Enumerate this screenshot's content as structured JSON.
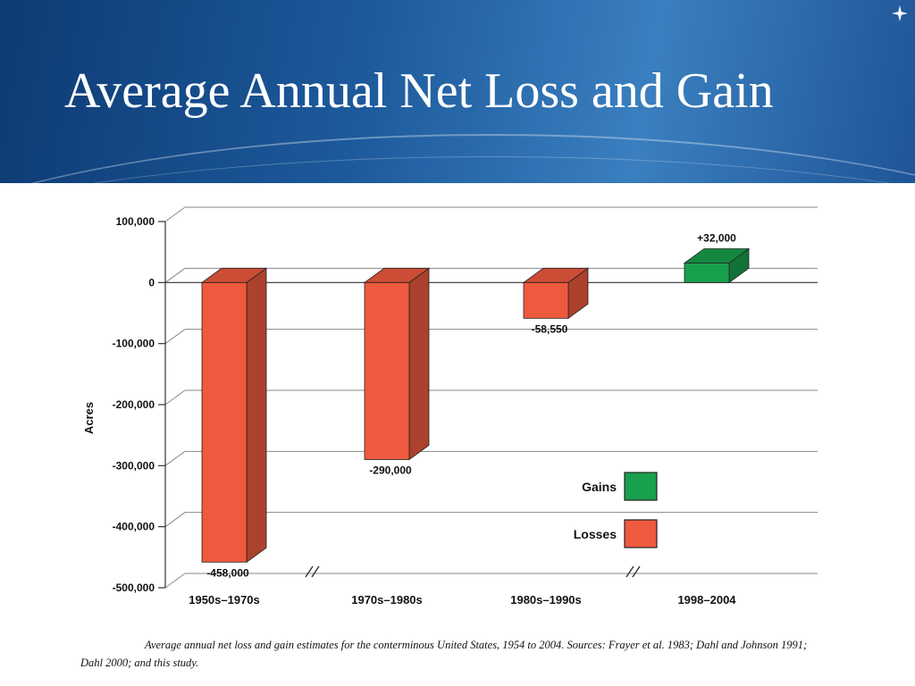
{
  "slide": {
    "title": "Average Annual Net Loss and Gain",
    "caption": "Average annual net loss and gain estimates for the conterminous United States, 1954 to 2004. Sources: Frayer et al. 1983; Dahl and Johnson 1991; Dahl 2000; and this study."
  },
  "colors": {
    "banner_dark": "#0d3a73",
    "banner_light": "#3a7fbf",
    "gains": "#18a04c",
    "losses": "#ef5a3e"
  },
  "chart_data": {
    "type": "bar",
    "title": "",
    "xlabel": "",
    "ylabel": "Acres",
    "ylim": [
      -500000,
      100000
    ],
    "yticks": [
      100000,
      0,
      -100000,
      -200000,
      -300000,
      -400000,
      -500000
    ],
    "ytick_labels": [
      "100,000",
      "0",
      "-100,000",
      "-200,000",
      "-300,000",
      "-400,000",
      "-500,000"
    ],
    "categories": [
      "1950s–1970s",
      "1970s–1980s",
      "1980s–1990s",
      "1998–2004"
    ],
    "values": [
      -458000,
      -290000,
      -58550,
      32000
    ],
    "data_labels": [
      "-458,000",
      "-290,000",
      "-58,550",
      "+32,000"
    ],
    "bar_kind": [
      "losses",
      "losses",
      "losses",
      "gains"
    ],
    "legend": [
      {
        "name": "Gains",
        "kind": "gains"
      },
      {
        "name": "Losses",
        "kind": "losses"
      }
    ],
    "legend_position": "right",
    "grid": true,
    "style": "3d"
  }
}
